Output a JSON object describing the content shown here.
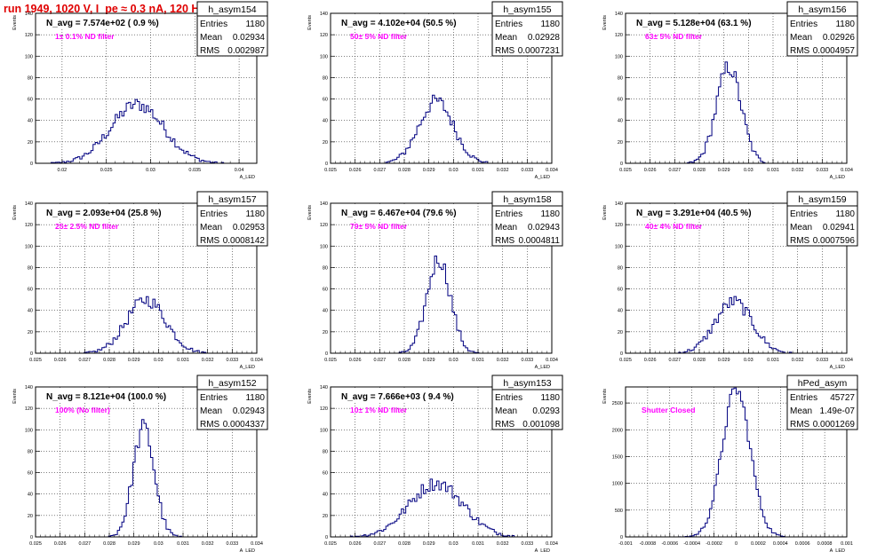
{
  "page": {
    "title": "run 1949,  1020 V, I_pe ≈ 0.3 nA, 120 Hz"
  },
  "stats_labels": {
    "entries": "Entries",
    "mean": "Mean",
    "rms": "RMS"
  },
  "chart_data": [
    {
      "type": "bar",
      "name": "h_asym154",
      "title": "N_avg = 7.574e+02 ( 0.9 %)",
      "annotation": "1± 0.1% ND filter",
      "xlabel": "A_LED",
      "ylabel": "Events",
      "xlim": [
        0.017,
        0.042
      ],
      "ylim": [
        0,
        140
      ],
      "xticks": [
        0.02,
        0.025,
        0.03,
        0.035,
        0.04
      ],
      "xtick_labels": [
        "0.02",
        "0.025",
        "0.03",
        "0.035",
        "0.04"
      ],
      "yticks": [
        0,
        20,
        40,
        60,
        80,
        100,
        120,
        140
      ],
      "grid": true,
      "stats": {
        "entries": "1180",
        "mean": "0.02934",
        "rms": "0.002987"
      },
      "hist": {
        "peak_x": 0.0285,
        "peak_y": 55,
        "sigma": 0.003
      }
    },
    {
      "type": "bar",
      "name": "h_asym155",
      "title": "N_avg = 4.102e+04 (50.5 %)",
      "annotation": "50± 5% ND filter",
      "xlabel": "A_LED",
      "ylabel": "Events",
      "xlim": [
        0.025,
        0.034
      ],
      "ylim": [
        0,
        140
      ],
      "xticks": [
        0.025,
        0.026,
        0.027,
        0.028,
        0.029,
        0.03,
        0.031,
        0.032,
        0.033,
        0.034
      ],
      "xtick_labels": [
        "0.025",
        "0.026",
        "0.027",
        "0.028",
        "0.029",
        "0.03",
        "0.031",
        "0.032",
        "0.033",
        "0.034"
      ],
      "yticks": [
        0,
        20,
        40,
        60,
        80,
        100,
        120,
        140
      ],
      "grid": true,
      "stats": {
        "entries": "1180",
        "mean": "0.02928",
        "rms": "0.0007231"
      },
      "hist": {
        "peak_x": 0.0293,
        "peak_y": 58,
        "sigma": 0.0007
      }
    },
    {
      "type": "bar",
      "name": "h_asym156",
      "title": "N_avg = 5.128e+04 (63.1 %)",
      "annotation": "63± 5% ND filter",
      "xlabel": "A_LED",
      "ylabel": "Events",
      "xlim": [
        0.025,
        0.034
      ],
      "ylim": [
        0,
        140
      ],
      "xticks": [
        0.025,
        0.026,
        0.027,
        0.028,
        0.029,
        0.03,
        0.031,
        0.032,
        0.033,
        0.034
      ],
      "xtick_labels": [
        "0.025",
        "0.026",
        "0.027",
        "0.028",
        "0.029",
        "0.03",
        "0.031",
        "0.032",
        "0.033",
        "0.034"
      ],
      "yticks": [
        0,
        20,
        40,
        60,
        80,
        100,
        120,
        140
      ],
      "grid": true,
      "stats": {
        "entries": "1180",
        "mean": "0.02926",
        "rms": "0.0004957"
      },
      "hist": {
        "peak_x": 0.0292,
        "peak_y": 90,
        "sigma": 0.0005
      }
    },
    {
      "type": "bar",
      "name": "h_asym157",
      "title": "N_avg = 2.093e+04 (25.8 %)",
      "annotation": "25± 2.5% ND filter",
      "xlabel": "A_LED",
      "ylabel": "Events",
      "xlim": [
        0.025,
        0.034
      ],
      "ylim": [
        0,
        140
      ],
      "xticks": [
        0.025,
        0.026,
        0.027,
        0.028,
        0.029,
        0.03,
        0.031,
        0.032,
        0.033,
        0.034
      ],
      "xtick_labels": [
        "0.025",
        "0.026",
        "0.027",
        "0.028",
        "0.029",
        "0.03",
        "0.031",
        "0.032",
        "0.033",
        "0.034"
      ],
      "yticks": [
        0,
        20,
        40,
        60,
        80,
        100,
        120,
        140
      ],
      "grid": true,
      "stats": {
        "entries": "1180",
        "mean": "0.02953",
        "rms": "0.0008142"
      },
      "hist": {
        "peak_x": 0.0295,
        "peak_y": 50,
        "sigma": 0.0008
      }
    },
    {
      "type": "bar",
      "name": "h_asym158",
      "title": "N_avg = 6.467e+04 (79.6 %)",
      "annotation": "79± 5% ND filter",
      "xlabel": "A_LED",
      "ylabel": "Events",
      "xlim": [
        0.025,
        0.034
      ],
      "ylim": [
        0,
        140
      ],
      "xticks": [
        0.025,
        0.026,
        0.027,
        0.028,
        0.029,
        0.03,
        0.031,
        0.032,
        0.033,
        0.034
      ],
      "xtick_labels": [
        "0.025",
        "0.026",
        "0.027",
        "0.028",
        "0.029",
        "0.03",
        "0.031",
        "0.032",
        "0.033",
        "0.034"
      ],
      "yticks": [
        0,
        20,
        40,
        60,
        80,
        100,
        120,
        140
      ],
      "grid": true,
      "stats": {
        "entries": "1180",
        "mean": "0.02943",
        "rms": "0.0004811"
      },
      "hist": {
        "peak_x": 0.0294,
        "peak_y": 88,
        "sigma": 0.00048
      }
    },
    {
      "type": "bar",
      "name": "h_asym159",
      "title": "N_avg = 3.291e+04 (40.5 %)",
      "annotation": "40± 4% ND filter",
      "xlabel": "A_LED",
      "ylabel": "Events",
      "xlim": [
        0.025,
        0.034
      ],
      "ylim": [
        0,
        140
      ],
      "xticks": [
        0.025,
        0.026,
        0.027,
        0.028,
        0.029,
        0.03,
        0.031,
        0.032,
        0.033,
        0.034
      ],
      "xtick_labels": [
        "0.025",
        "0.026",
        "0.027",
        "0.028",
        "0.029",
        "0.03",
        "0.031",
        "0.032",
        "0.033",
        "0.034"
      ],
      "yticks": [
        0,
        20,
        40,
        60,
        80,
        100,
        120,
        140
      ],
      "grid": true,
      "stats": {
        "entries": "1180",
        "mean": "0.02941",
        "rms": "0.0007596"
      },
      "hist": {
        "peak_x": 0.0294,
        "peak_y": 48,
        "sigma": 0.00075
      }
    },
    {
      "type": "bar",
      "name": "h_asym152",
      "title": "N_avg = 8.121e+04 (100.0 %)",
      "annotation": "100% (No filter)",
      "xlabel": "A_LED",
      "ylabel": "Events",
      "xlim": [
        0.025,
        0.034
      ],
      "ylim": [
        0,
        140
      ],
      "xticks": [
        0.025,
        0.026,
        0.027,
        0.028,
        0.029,
        0.03,
        0.031,
        0.032,
        0.033,
        0.034
      ],
      "xtick_labels": [
        "0.025",
        "0.026",
        "0.027",
        "0.028",
        "0.029",
        "0.03",
        "0.031",
        "0.032",
        "0.033",
        "0.034"
      ],
      "yticks": [
        0,
        20,
        40,
        60,
        80,
        100,
        120,
        140
      ],
      "grid": true,
      "stats": {
        "entries": "1180",
        "mean": "0.02943",
        "rms": "0.0004337"
      },
      "hist": {
        "peak_x": 0.0294,
        "peak_y": 102,
        "sigma": 0.00043
      }
    },
    {
      "type": "bar",
      "name": "h_asym153",
      "title": "N_avg = 7.666e+03 ( 9.4 %)",
      "annotation": "10± 1% ND filter",
      "xlabel": "A_LED",
      "ylabel": "Events",
      "xlim": [
        0.025,
        0.034
      ],
      "ylim": [
        0,
        140
      ],
      "xticks": [
        0.025,
        0.026,
        0.027,
        0.028,
        0.029,
        0.03,
        0.031,
        0.032,
        0.033,
        0.034
      ],
      "xtick_labels": [
        "0.025",
        "0.026",
        "0.027",
        "0.028",
        "0.029",
        "0.03",
        "0.031",
        "0.032",
        "0.033",
        "0.034"
      ],
      "yticks": [
        0,
        20,
        40,
        60,
        80,
        100,
        120,
        140
      ],
      "grid": true,
      "stats": {
        "entries": "1180",
        "mean": "0.0293",
        "rms": "0.001098"
      },
      "hist": {
        "peak_x": 0.0293,
        "peak_y": 50,
        "sigma": 0.0011
      }
    },
    {
      "type": "bar",
      "name": "hPed_asym",
      "title": "",
      "annotation": "Shutter Closed",
      "xlabel": "A_LED",
      "ylabel": "Events",
      "xlim": [
        -0.001,
        0.001
      ],
      "ylim": [
        0,
        2800
      ],
      "xticks": [
        -0.001,
        -0.0008,
        -0.0006,
        -0.0004,
        -0.0002,
        0,
        0.0002,
        0.0004,
        0.0006,
        0.0008,
        0.001
      ],
      "xtick_labels": [
        "-0.001",
        "-0.0008",
        "-0.0006",
        "-0.0004",
        "-0.0002",
        "0",
        "0.0002",
        "0.0004",
        "0.0006",
        "0.0008",
        "0.001"
      ],
      "yticks": [
        0,
        500,
        1000,
        1500,
        2000,
        2500
      ],
      "grid": true,
      "stats": {
        "entries": "45727",
        "mean": "1.49e-07",
        "rms": "0.0001269"
      },
      "hist": {
        "peak_x": 0.0,
        "peak_y": 2750,
        "sigma": 0.000127
      }
    }
  ],
  "colors": {
    "histogram": "#000080",
    "title_red": "#e00000",
    "annotation_magenta": "#ff00ff",
    "grid": "#000000"
  }
}
